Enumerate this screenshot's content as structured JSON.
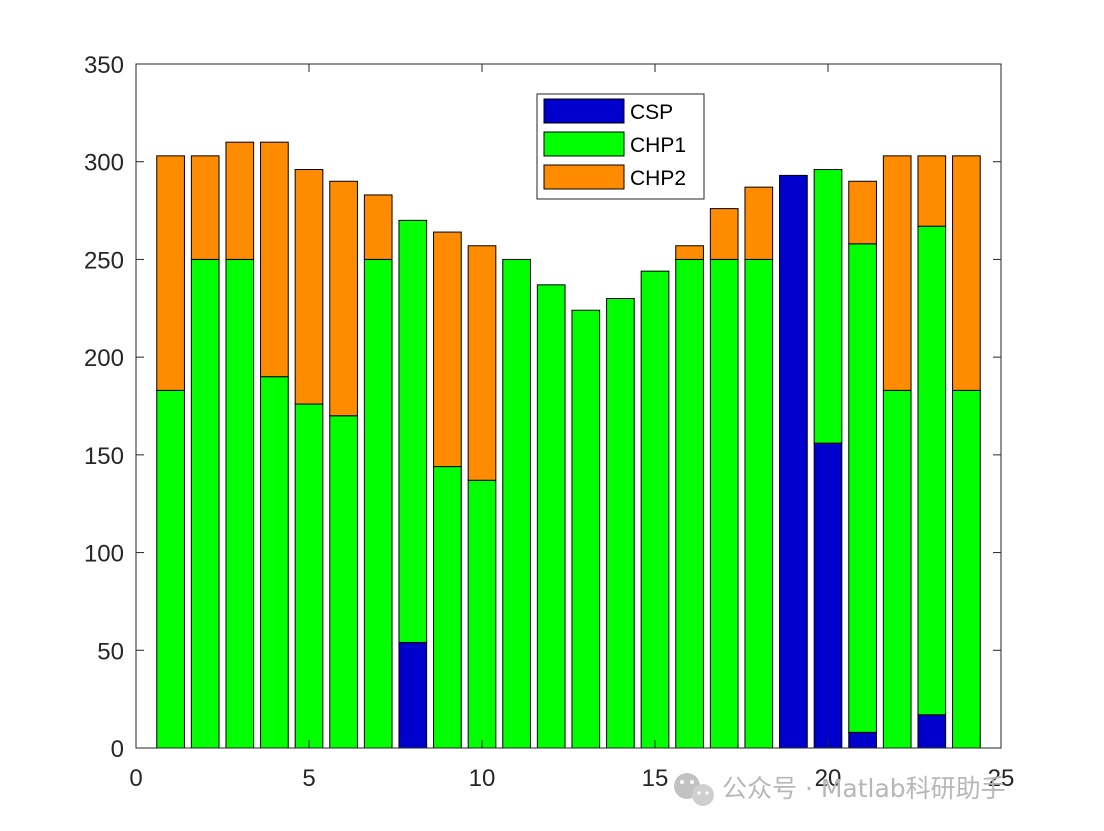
{
  "chart_data": {
    "type": "bar",
    "stacked": true,
    "categories": [
      1,
      2,
      3,
      4,
      5,
      6,
      7,
      8,
      9,
      10,
      11,
      12,
      13,
      14,
      15,
      16,
      17,
      18,
      19,
      20,
      21,
      22,
      23,
      24
    ],
    "series": [
      {
        "name": "CSP",
        "color": "#0000cd",
        "values": [
          0,
          0,
          0,
          0,
          0,
          0,
          0,
          54,
          0,
          0,
          0,
          0,
          0,
          0,
          0,
          0,
          0,
          0,
          293,
          156,
          8,
          0,
          17,
          0
        ]
      },
      {
        "name": "CHP1",
        "color": "#00ff00",
        "values": [
          183,
          250,
          250,
          190,
          176,
          170,
          250,
          216,
          144,
          137,
          250,
          237,
          224,
          230,
          244,
          250,
          250,
          250,
          0,
          140,
          250,
          183,
          250,
          183
        ]
      },
      {
        "name": "CHP2",
        "color": "#ff8c00",
        "values": [
          120,
          53,
          60,
          120,
          120,
          120,
          33,
          0,
          120,
          120,
          0,
          0,
          0,
          0,
          0,
          7,
          26,
          37,
          0,
          0,
          32,
          120,
          36,
          120
        ]
      }
    ],
    "xlim": [
      0,
      25
    ],
    "ylim": [
      0,
      350
    ],
    "x_ticks": [
      0,
      5,
      10,
      15,
      20,
      25
    ],
    "y_ticks": [
      0,
      50,
      100,
      150,
      200,
      250,
      300,
      350
    ],
    "title": "",
    "xlabel": "",
    "ylabel": "",
    "grid": false,
    "legend_position": "top-center"
  },
  "watermark": {
    "icon": "wechat-icon",
    "text": "公众号 · Matlab科研助手"
  }
}
